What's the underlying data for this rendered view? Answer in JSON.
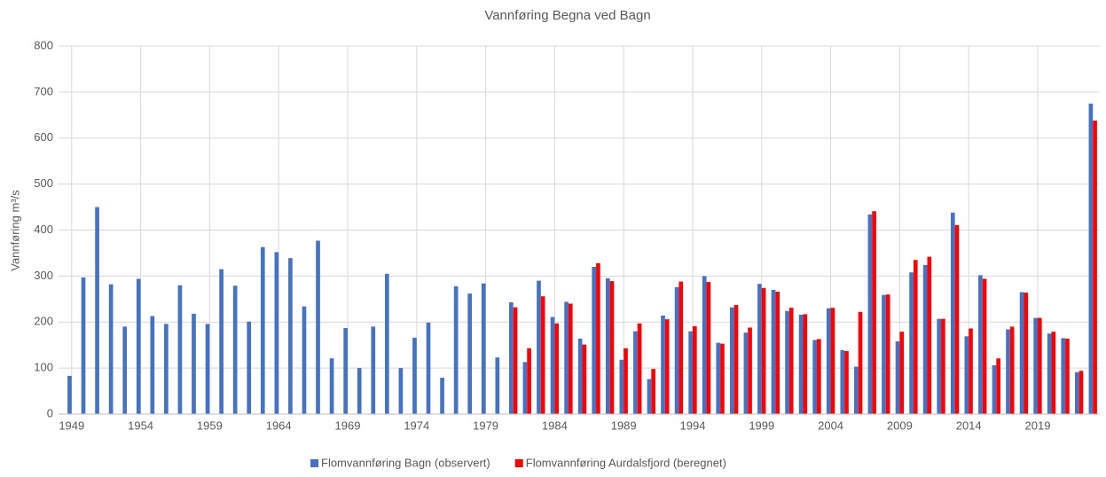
{
  "chart_data": {
    "type": "bar",
    "title": "Vannføring Begna ved Bagn",
    "y_label": "Vannføring m³/s",
    "categories": [
      "1949",
      null,
      null,
      null,
      null,
      "1954",
      null,
      null,
      null,
      null,
      "1959",
      null,
      null,
      null,
      null,
      "1964",
      null,
      null,
      null,
      null,
      "1969",
      null,
      null,
      null,
      null,
      "1974",
      null,
      null,
      null,
      null,
      "1979",
      null,
      null,
      null,
      null,
      "1984",
      null,
      null,
      null,
      null,
      "1989",
      null,
      null,
      null,
      null,
      "1994",
      null,
      null,
      null,
      null,
      "1999",
      null,
      null,
      null,
      null,
      "2004",
      null,
      null,
      null,
      null,
      "2009",
      null,
      null,
      null,
      null,
      "2014",
      null,
      null,
      null,
      null,
      "2019",
      null,
      null,
      null,
      null
    ],
    "series": [
      {
        "name": "Flomvannføring Bagn (observert)",
        "color": "#4472c4",
        "values": [
          83,
          297,
          450,
          282,
          190,
          294,
          213,
          196,
          280,
          218,
          196,
          315,
          279,
          201,
          363,
          352,
          339,
          234,
          377,
          121,
          187,
          100,
          190,
          305,
          100,
          166,
          199,
          79,
          278,
          262,
          284,
          123,
          243,
          113,
          290,
          211,
          244,
          164,
          320,
          295,
          118,
          180,
          76,
          214,
          276,
          180,
          300,
          155,
          232,
          177,
          283,
          270,
          224,
          216,
          161,
          230,
          139,
          103,
          434,
          259,
          158,
          308,
          324,
          207,
          438,
          169,
          302,
          106,
          184,
          265,
          209,
          175,
          165,
          91,
          675
        ]
      },
      {
        "name": "Flomvannføring Aurdalsfjord (beregnet)",
        "color": "#ff0000",
        "values": [
          null,
          null,
          null,
          null,
          null,
          null,
          null,
          null,
          null,
          null,
          null,
          null,
          null,
          null,
          null,
          null,
          null,
          null,
          null,
          null,
          null,
          null,
          null,
          null,
          null,
          null,
          null,
          null,
          null,
          null,
          null,
          null,
          232,
          143,
          256,
          197,
          240,
          151,
          328,
          289,
          143,
          197,
          98,
          206,
          288,
          191,
          287,
          153,
          237,
          188,
          274,
          266,
          231,
          217,
          163,
          231,
          137,
          222,
          441,
          260,
          179,
          335,
          342,
          207,
          411,
          186,
          294,
          121,
          190,
          264,
          209,
          179,
          164,
          94,
          638
        ]
      }
    ],
    "ylim": [
      0,
      800
    ],
    "yticks": [
      0,
      100,
      200,
      300,
      400,
      500,
      600,
      700,
      800
    ],
    "grid": true,
    "legend": "bottom"
  }
}
